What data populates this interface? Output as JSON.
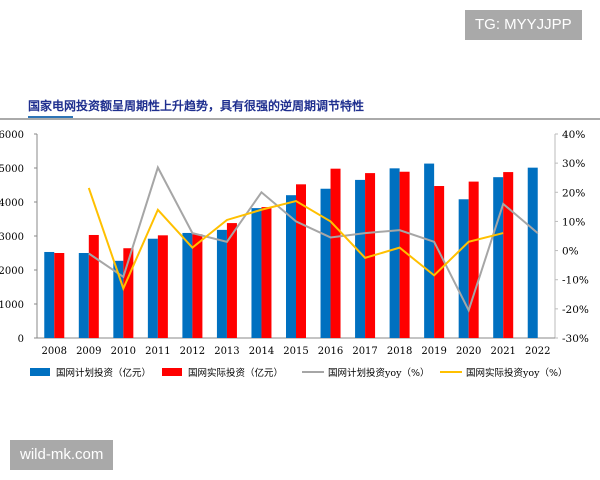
{
  "watermarks": {
    "top": "TG: MYYJJPP",
    "bottom": "wild-mk.com"
  },
  "chart_data": {
    "type": "bar",
    "title": "国家电网投资额呈周期性上升趋势，具有很强的逆周期调节特性",
    "categories": [
      "2008",
      "2009",
      "2010",
      "2011",
      "2012",
      "2013",
      "2014",
      "2015",
      "2016",
      "2017",
      "2018",
      "2019",
      "2020",
      "2021",
      "2022"
    ],
    "ylim": [
      0,
      6000
    ],
    "yticks": [
      "0",
      "1000",
      "2000",
      "3000",
      "4000",
      "5000",
      "6000"
    ],
    "y2lim": [
      -30,
      40
    ],
    "y2ticks": [
      "-30%",
      "-20%",
      "-10%",
      "0%",
      "10%",
      "20%",
      "30%",
      "40%"
    ],
    "grid": false,
    "legend_position": "bottom",
    "series": [
      {
        "name": "国网计划投资（亿元）",
        "kind": "bar",
        "color": "#0070c0",
        "values": [
          2530,
          2500,
          2270,
          2920,
          3090,
          3180,
          3820,
          4200,
          4390,
          4650,
          4990,
          5130,
          4080,
          4730,
          5010
        ]
      },
      {
        "name": "国网实际投资（亿元）",
        "kind": "bar",
        "color": "#ff0000",
        "values": [
          2500,
          3030,
          2640,
          3020,
          3050,
          3380,
          3850,
          4520,
          4980,
          4850,
          4890,
          4470,
          4600,
          4880,
          null
        ]
      },
      {
        "name": "国网计划投资yoy（%）",
        "kind": "line",
        "axis": "right",
        "color": "#a6a6a6",
        "values": [
          null,
          -1,
          -9,
          28.5,
          6,
          3,
          20,
          10,
          4.5,
          6,
          7,
          3,
          -20.5,
          16,
          6
        ]
      },
      {
        "name": "国网实际投资yoy（%）",
        "kind": "line",
        "axis": "right",
        "color": "#ffc000",
        "values": [
          null,
          21.5,
          -13,
          14,
          1,
          10.5,
          14,
          17,
          10,
          -2.5,
          1,
          -8.5,
          3,
          6,
          null
        ]
      }
    ]
  }
}
